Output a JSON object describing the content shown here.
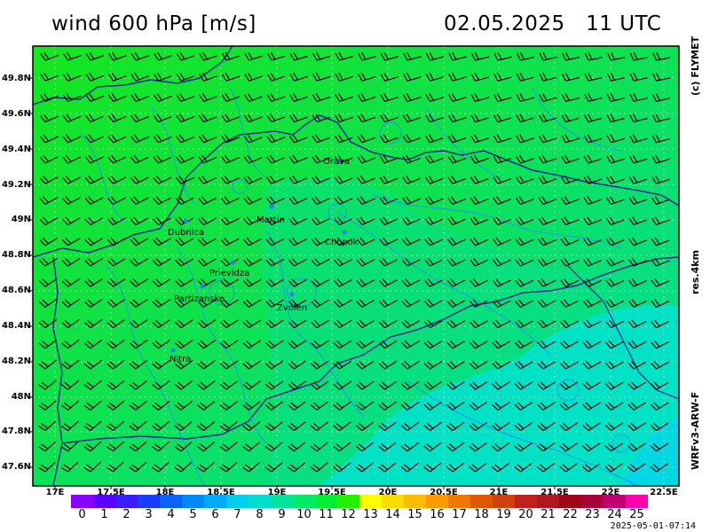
{
  "header": {
    "title": "wind 600 hPa [m/s]",
    "datetime": "02.05.2025   11 UTC"
  },
  "side_labels": {
    "copyright": "(c) FLYMET",
    "resolution": "res.4km",
    "model": "WRFv3-ARW-F"
  },
  "axes": {
    "lat_labels": [
      "49.8N",
      "49.6N",
      "49.4N",
      "49.2N",
      "49N",
      "48.8N",
      "48.6N",
      "48.4N",
      "48.2N",
      "48N",
      "47.8N",
      "47.6N"
    ],
    "lon_labels": [
      "17E",
      "17.5E",
      "18E",
      "18.5E",
      "19E",
      "19.5E",
      "20E",
      "20.5E",
      "21E",
      "21.5E",
      "22E",
      "22.5E"
    ]
  },
  "cities": [
    {
      "name": "Orava"
    },
    {
      "name": "Martin"
    },
    {
      "name": "Dubnica"
    },
    {
      "name": "Chopok"
    },
    {
      "name": "Prievidza"
    },
    {
      "name": "Partizanske"
    },
    {
      "name": "Zvolen"
    },
    {
      "name": "Nitra"
    }
  ],
  "legend": {
    "values": [
      "0",
      "1",
      "2",
      "3",
      "4",
      "5",
      "6",
      "7",
      "8",
      "9",
      "10",
      "11",
      "12",
      "13",
      "14",
      "15",
      "16",
      "17",
      "18",
      "19",
      "20",
      "21",
      "22",
      "23",
      "24",
      "25"
    ],
    "colors": [
      "#8a00ff",
      "#5a00ff",
      "#3a1cff",
      "#1a3cff",
      "#0a62ff",
      "#0088ff",
      "#00aaff",
      "#00ccee",
      "#00ddcc",
      "#00e59a",
      "#00ea6a",
      "#00ee33",
      "#22f000",
      "#ffff00",
      "#ffdd00",
      "#ffbb00",
      "#ff9900",
      "#f07700",
      "#e05500",
      "#d04010",
      "#c02020",
      "#b01820",
      "#a00818",
      "#a8003a",
      "#c00070",
      "#ff00aa"
    ]
  },
  "timestamp": "2025-05-01-07:14"
}
